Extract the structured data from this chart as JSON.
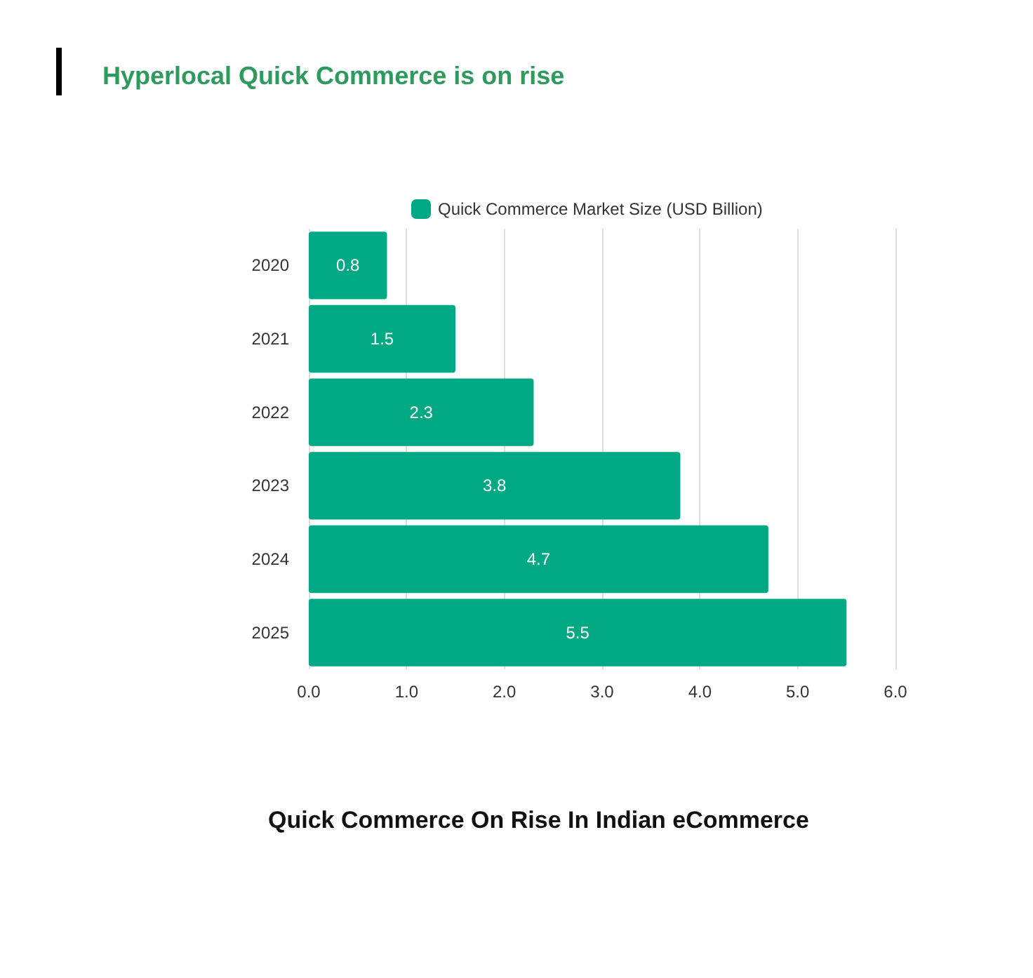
{
  "chart_data": {
    "type": "bar",
    "orientation": "horizontal",
    "title": "Hyperlocal Quick Commerce is on rise",
    "subtitle": "Quick Commerce On Rise In Indian eCommerce",
    "categories": [
      "2020",
      "2021",
      "2022",
      "2023",
      "2024",
      "2025"
    ],
    "series": [
      {
        "name": "Quick Commerce Market Size (USD Billion)",
        "color": "#00a884",
        "values": [
          0.8,
          1.5,
          2.3,
          3.8,
          4.7,
          5.5
        ]
      }
    ],
    "xlim": [
      0,
      6
    ],
    "xticks": [
      {
        "value": 0,
        "label": "0.0"
      },
      {
        "value": 1,
        "label": "1.0"
      },
      {
        "value": 2,
        "label": "2.0"
      },
      {
        "value": 3,
        "label": "3.0"
      },
      {
        "value": 4,
        "label": "4.0"
      },
      {
        "value": 5,
        "label": "5.0"
      },
      {
        "value": 6,
        "label": "6.0"
      }
    ],
    "grid": "x",
    "legend": "top",
    "data_labels": true
  }
}
